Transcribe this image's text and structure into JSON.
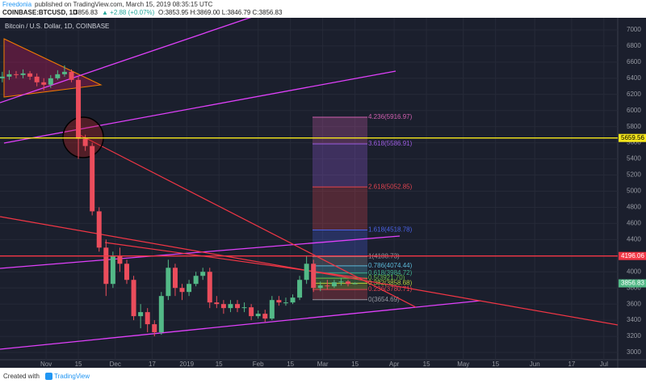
{
  "header": {
    "author": "Freedonia",
    "published": "published on TradingView.com, March 15, 2019 08:35:15 UTC",
    "symbol": "COINBASE:BTCUSD, 1D",
    "price": "3856.83",
    "change": "▲ +2.88 (+0.07%)",
    "ohlc": "O:3853.95 H:3869.00 L:3846.79 C:3856.83"
  },
  "chart_data": {
    "type": "candlestick",
    "title": "Bitcoin / U.S. Dollar, 1D, COINBASE",
    "x": [
      -19,
      -16,
      -13,
      -10,
      -7,
      -4,
      -1,
      2,
      5,
      8,
      11,
      14,
      17,
      20,
      23,
      26,
      29,
      32,
      35,
      38,
      41,
      44,
      47,
      50,
      53,
      56,
      59,
      62,
      65,
      68,
      71,
      74,
      77,
      80,
      83,
      86,
      89,
      92,
      95,
      98,
      101,
      104,
      107,
      110,
      113,
      116,
      119,
      122,
      125,
      128,
      131,
      134
    ],
    "open": [
      6400,
      6420,
      6450,
      6440,
      6460,
      6420,
      6350,
      6320,
      6400,
      6450,
      6480,
      6380,
      5650,
      5560,
      4750,
      4300,
      3850,
      4200,
      4100,
      3900,
      3450,
      3500,
      3350,
      3250,
      3700,
      4050,
      3800,
      3750,
      3850,
      3950,
      4000,
      3620,
      3600,
      3550,
      3600,
      3550,
      3560,
      3450,
      3480,
      3420,
      3650,
      3620,
      3620,
      3680,
      3900,
      4100,
      3800,
      3830,
      3820,
      3870,
      3880,
      3853.95
    ],
    "high": [
      6480,
      6500,
      6490,
      6510,
      6490,
      6460,
      6400,
      6440,
      6500,
      6560,
      6510,
      6420,
      5700,
      5600,
      4800,
      4400,
      4250,
      4300,
      4150,
      3950,
      3600,
      3550,
      3400,
      3750,
      4150,
      4100,
      3850,
      3900,
      4000,
      4050,
      4050,
      3700,
      3650,
      3650,
      3650,
      3620,
      3600,
      3520,
      3530,
      3700,
      3700,
      3680,
      3720,
      3950,
      4200,
      4150,
      3880,
      3900,
      3900,
      3920,
      3900,
      3869
    ],
    "low": [
      6350,
      6380,
      6400,
      6400,
      6380,
      6300,
      6250,
      6280,
      6380,
      6420,
      6350,
      5400,
      5500,
      4700,
      4250,
      3700,
      3800,
      4000,
      3850,
      3400,
      3300,
      3250,
      3200,
      3220,
      3650,
      3700,
      3650,
      3700,
      3820,
      3900,
      3550,
      3550,
      3480,
      3500,
      3500,
      3500,
      3400,
      3420,
      3380,
      3400,
      3580,
      3580,
      3600,
      3650,
      3850,
      3750,
      3760,
      3780,
      3800,
      3830,
      3820,
      3846.79
    ],
    "close": [
      6420,
      6450,
      6440,
      6460,
      6420,
      6350,
      6320,
      6400,
      6450,
      6480,
      6380,
      5650,
      5560,
      4750,
      4300,
      3850,
      4200,
      4100,
      3900,
      3450,
      3500,
      3350,
      3250,
      3700,
      4050,
      3800,
      3750,
      3850,
      3950,
      4000,
      3620,
      3600,
      3550,
      3600,
      3550,
      3560,
      3450,
      3480,
      3420,
      3650,
      3620,
      3620,
      3680,
      3900,
      4100,
      3800,
      3830,
      3820,
      3870,
      3880,
      3850,
      3856.83
    ],
    "up_color": "#53b987",
    "down_color": "#eb4d5c",
    "xlim": [
      -20,
      248
    ],
    "xticks": [
      {
        "value": 0,
        "label": "Nov"
      },
      {
        "value": 14,
        "label": "15"
      },
      {
        "value": 30,
        "label": "Dec"
      },
      {
        "value": 46,
        "label": "17"
      },
      {
        "value": 61,
        "label": "2019"
      },
      {
        "value": 75,
        "label": "15"
      },
      {
        "value": 92,
        "label": "Feb"
      },
      {
        "value": 106,
        "label": "15"
      },
      {
        "value": 120,
        "label": "Mar"
      },
      {
        "value": 134,
        "label": "15"
      },
      {
        "value": 151,
        "label": "Apr"
      },
      {
        "value": 165,
        "label": "15"
      },
      {
        "value": 181,
        "label": "May"
      },
      {
        "value": 195,
        "label": "15"
      },
      {
        "value": 212,
        "label": "Jun"
      },
      {
        "value": 228,
        "label": "17"
      },
      {
        "value": 242,
        "label": "Jul"
      }
    ],
    "ylim": [
      2910,
      7150
    ],
    "yticks": [
      3000,
      3200,
      3400,
      3600,
      3800,
      4000,
      4200,
      4400,
      4600,
      4800,
      5000,
      5200,
      5400,
      5600,
      5800,
      6000,
      6200,
      6400,
      6600,
      6800,
      7000
    ],
    "grid": true,
    "levels": [
      {
        "value": 5659.56,
        "color": "#f5e61b"
      },
      {
        "value": 4196.06,
        "color": "#f23645"
      }
    ],
    "fib": [
      {
        "label": "4.236(5916.97)",
        "value": 5916.97,
        "color": "#d05fb0"
      },
      {
        "label": "3.618(5586.91)",
        "value": 5586.91,
        "color": "#9c5ce0"
      },
      {
        "label": "2.618(5052.85)",
        "value": 5052.85,
        "color": "#e0434f"
      },
      {
        "label": "1.618(4518.78)",
        "value": 4518.78,
        "color": "#4a62e6"
      },
      {
        "label": "1(4188.73)",
        "value": 4188.73,
        "color": "#9598a1"
      },
      {
        "label": "0.786(4074.44)",
        "value": 4074.44,
        "color": "#5bb8d8"
      },
      {
        "label": "0.618(3984.72)",
        "value": 3984.72,
        "color": "#3fb08e"
      },
      {
        "label": "0.5(3921.70)",
        "value": 3921.7,
        "color": "#6cc24a"
      },
      {
        "label": "0.382(3858.68)",
        "value": 3858.68,
        "color": "#b3cf3a"
      },
      {
        "label": "0.236(3780.71)",
        "value": 3780.71,
        "color": "#e0434f"
      },
      {
        "label": "0(3654.69)",
        "value": 3654.69,
        "color": "#9598a1"
      }
    ]
  },
  "footer": {
    "text": "Created with",
    "brand": "TradingView"
  }
}
